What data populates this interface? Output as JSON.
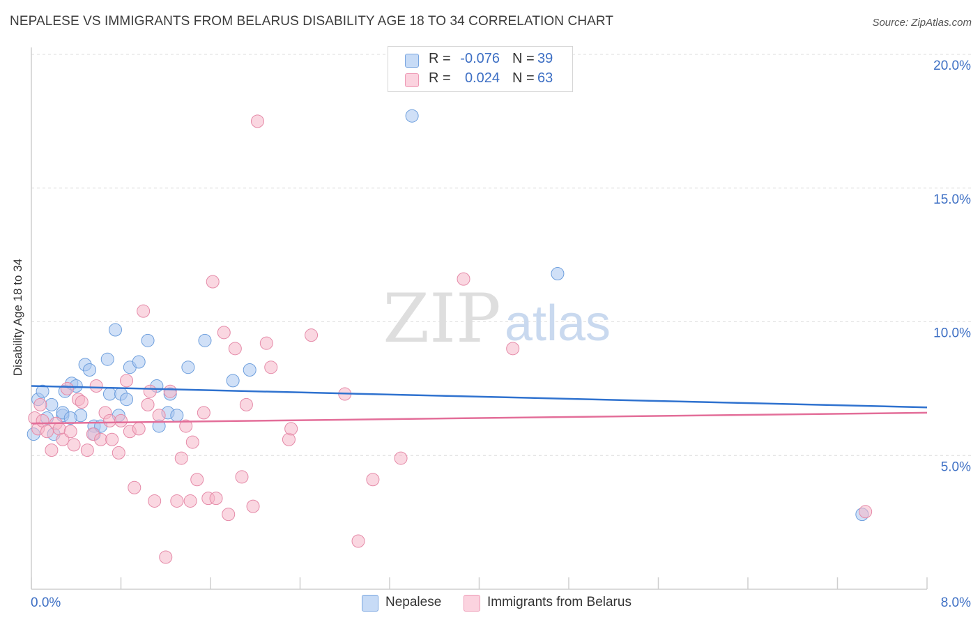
{
  "header": {
    "title": "NEPALESE VS IMMIGRANTS FROM BELARUS DISABILITY AGE 18 TO 34 CORRELATION CHART",
    "source": "Source: ZipAtlas.com"
  },
  "watermark": {
    "zip": "ZIP",
    "atlas": "atlas"
  },
  "legend_top": {
    "rows": [
      {
        "r_label": "R =",
        "r_value": "-0.076",
        "n_label": "N =",
        "n_value": "39",
        "color": "#a9c7f0"
      },
      {
        "r_label": "R =",
        "r_value": "0.024",
        "n_label": "N =",
        "n_value": "63",
        "color": "#f5b7c9"
      }
    ]
  },
  "legend_bottom": {
    "items": [
      {
        "label": "Nepalese",
        "color": "#a9c7f0"
      },
      {
        "label": "Immigrants from Belarus",
        "color": "#f5b7c9"
      }
    ]
  },
  "chart_data": {
    "type": "scatter",
    "title": "NEPALESE VS IMMIGRANTS FROM BELARUS DISABILITY AGE 18 TO 34 CORRELATION CHART",
    "xlabel": "",
    "ylabel": "Disability Age 18 to 34",
    "xlim": [
      0,
      8
    ],
    "ylim": [
      0,
      20
    ],
    "x_tick_labels": [
      "0.0%",
      "8.0%"
    ],
    "y_ticks": [
      5,
      10,
      15,
      20
    ],
    "y_tick_labels": [
      "5.0%",
      "10.0%",
      "15.0%",
      "20.0%"
    ],
    "grid": true,
    "legend": "bottom",
    "colors": {
      "nepalese": "#3d7ad6",
      "belarus": "#e07096",
      "axis_label": "#3d6fc4"
    },
    "series": [
      {
        "name": "Nepalese",
        "color": "#a9c7f0",
        "edge": "#6e9fdd",
        "trend": {
          "x": [
            0,
            8
          ],
          "y": [
            7.6,
            6.8
          ],
          "color": "#2f72cf"
        },
        "points": [
          [
            0.02,
            5.8
          ],
          [
            0.06,
            7.1
          ],
          [
            0.1,
            7.4
          ],
          [
            0.14,
            6.4
          ],
          [
            0.18,
            6.9
          ],
          [
            0.2,
            5.8
          ],
          [
            0.28,
            6.5
          ],
          [
            0.3,
            7.4
          ],
          [
            0.36,
            7.7
          ],
          [
            0.4,
            7.6
          ],
          [
            0.44,
            6.5
          ],
          [
            0.48,
            8.4
          ],
          [
            0.52,
            8.2
          ],
          [
            0.56,
            6.1
          ],
          [
            0.56,
            5.8
          ],
          [
            0.62,
            6.1
          ],
          [
            0.68,
            8.6
          ],
          [
            0.7,
            7.3
          ],
          [
            0.75,
            9.7
          ],
          [
            0.78,
            6.5
          ],
          [
            0.8,
            7.3
          ],
          [
            0.85,
            7.1
          ],
          [
            0.88,
            8.3
          ],
          [
            0.96,
            8.5
          ],
          [
            1.04,
            9.3
          ],
          [
            1.12,
            7.6
          ],
          [
            1.14,
            6.1
          ],
          [
            1.22,
            6.6
          ],
          [
            1.24,
            7.3
          ],
          [
            1.3,
            6.5
          ],
          [
            1.4,
            8.3
          ],
          [
            1.55,
            9.3
          ],
          [
            1.8,
            7.8
          ],
          [
            1.95,
            8.2
          ],
          [
            3.4,
            17.7
          ],
          [
            4.7,
            11.8
          ],
          [
            7.42,
            2.8
          ],
          [
            0.28,
            6.6
          ],
          [
            0.35,
            6.4
          ]
        ]
      },
      {
        "name": "Immigrants from Belarus",
        "color": "#f5b7c9",
        "edge": "#e58aa8",
        "trend": {
          "x": [
            0,
            8
          ],
          "y": [
            6.2,
            6.6
          ],
          "color": "#e36e99"
        },
        "points": [
          [
            0.03,
            6.4
          ],
          [
            0.06,
            6.0
          ],
          [
            0.1,
            6.3
          ],
          [
            0.14,
            5.9
          ],
          [
            0.18,
            5.2
          ],
          [
            0.22,
            6.2
          ],
          [
            0.25,
            6.0
          ],
          [
            0.28,
            5.6
          ],
          [
            0.32,
            7.5
          ],
          [
            0.35,
            5.9
          ],
          [
            0.38,
            5.4
          ],
          [
            0.42,
            7.1
          ],
          [
            0.45,
            7.0
          ],
          [
            0.5,
            5.2
          ],
          [
            0.55,
            5.8
          ],
          [
            0.58,
            7.6
          ],
          [
            0.62,
            5.6
          ],
          [
            0.66,
            6.6
          ],
          [
            0.7,
            6.3
          ],
          [
            0.72,
            5.6
          ],
          [
            0.78,
            5.1
          ],
          [
            0.8,
            6.3
          ],
          [
            0.85,
            7.8
          ],
          [
            0.88,
            5.9
          ],
          [
            0.92,
            3.8
          ],
          [
            0.96,
            6.0
          ],
          [
            1.0,
            10.4
          ],
          [
            1.04,
            6.9
          ],
          [
            1.06,
            7.4
          ],
          [
            1.1,
            3.3
          ],
          [
            1.14,
            6.5
          ],
          [
            1.2,
            1.2
          ],
          [
            1.24,
            7.4
          ],
          [
            1.3,
            3.3
          ],
          [
            1.34,
            4.9
          ],
          [
            1.38,
            6.1
          ],
          [
            1.42,
            3.3
          ],
          [
            1.44,
            5.5
          ],
          [
            1.48,
            4.1
          ],
          [
            1.54,
            6.6
          ],
          [
            1.58,
            3.4
          ],
          [
            1.62,
            11.5
          ],
          [
            1.65,
            3.4
          ],
          [
            1.72,
            9.6
          ],
          [
            1.76,
            2.8
          ],
          [
            1.82,
            9.0
          ],
          [
            1.88,
            4.2
          ],
          [
            1.92,
            6.9
          ],
          [
            1.98,
            3.1
          ],
          [
            2.02,
            17.5
          ],
          [
            2.1,
            9.2
          ],
          [
            2.14,
            8.3
          ],
          [
            2.3,
            5.6
          ],
          [
            2.32,
            6.0
          ],
          [
            2.5,
            9.5
          ],
          [
            2.8,
            7.3
          ],
          [
            2.92,
            1.8
          ],
          [
            3.05,
            4.1
          ],
          [
            3.3,
            4.9
          ],
          [
            3.86,
            11.6
          ],
          [
            4.3,
            9.0
          ],
          [
            7.45,
            2.9
          ],
          [
            0.08,
            6.9
          ]
        ]
      }
    ]
  }
}
